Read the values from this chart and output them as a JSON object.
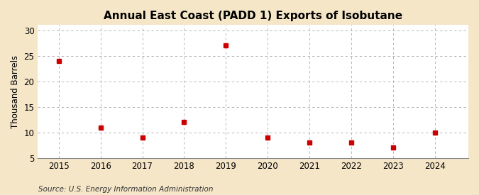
{
  "title": "Annual East Coast (PADD 1) Exports of Isobutane",
  "ylabel": "Thousand Barrels",
  "source": "Source: U.S. Energy Information Administration",
  "years": [
    2015,
    2016,
    2017,
    2018,
    2019,
    2020,
    2021,
    2022,
    2023,
    2024
  ],
  "values": [
    24,
    11,
    9,
    12,
    27,
    9,
    8,
    8,
    7,
    10
  ],
  "ylim": [
    5,
    31
  ],
  "yticks": [
    5,
    10,
    15,
    20,
    25,
    30
  ],
  "xlim": [
    2014.5,
    2024.8
  ],
  "marker_color": "#cc0000",
  "marker": "s",
  "marker_size": 4,
  "outer_background_color": "#f5e6c8",
  "plot_background_color": "#ffffff",
  "grid_color": "#aaaaaa",
  "title_fontsize": 11,
  "label_fontsize": 8.5,
  "tick_fontsize": 8.5,
  "source_fontsize": 7.5
}
